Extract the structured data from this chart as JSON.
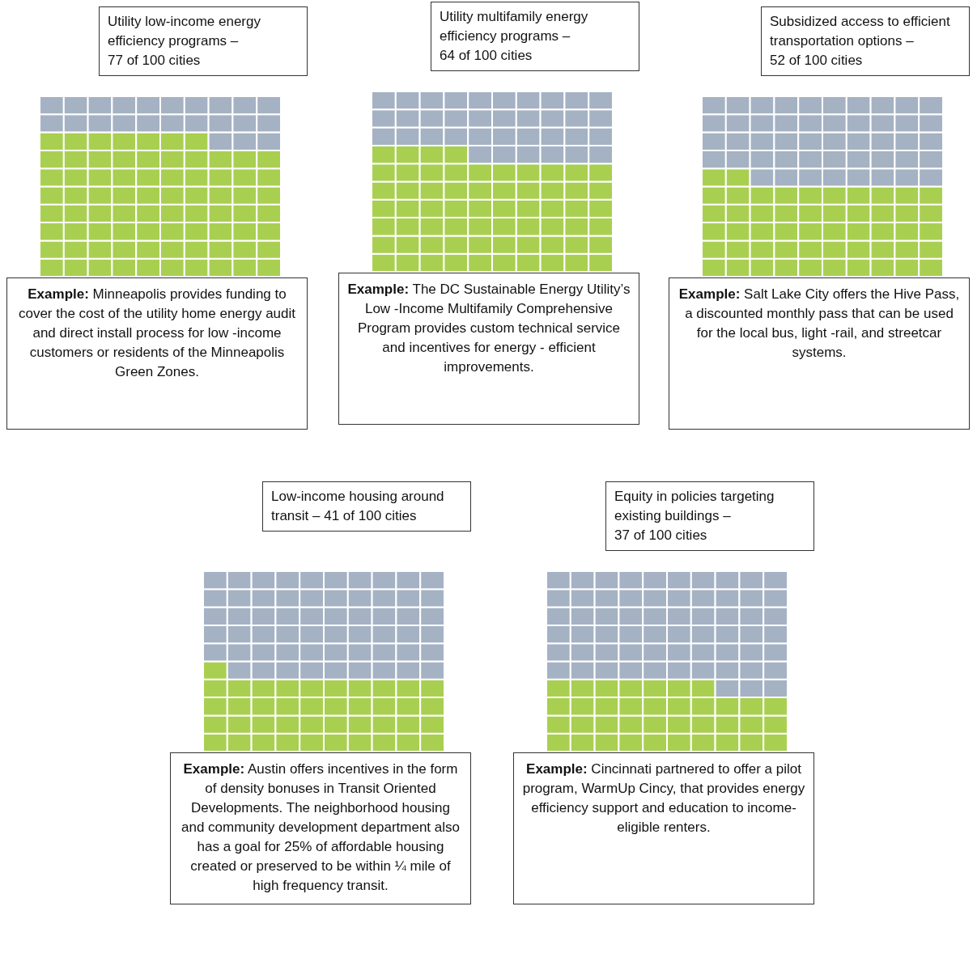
{
  "chart_data": [
    {
      "type": "other",
      "title": "Utility low-income energy efficiency programs –",
      "values": [
        77
      ],
      "value_labels": [
        "77 of 100 cities"
      ],
      "colors": [
        "#a9cf51"
      ],
      "annotations": [
        "Example: Minneapolis provides funding to cover the cost of the utility home energy audit and direct install process for low -income customers or residents of the Minneapolis Green Zones."
      ]
    },
    {
      "type": "other",
      "title": "Utility multifamily energy efficiency programs –",
      "values": [
        64
      ],
      "value_labels": [
        "64 of 100 cities"
      ],
      "colors": [
        "#a9cf51"
      ],
      "annotations": [
        "Example: The DC Sustainable Energy Utility’s Low  -Income Multifamily Comprehensive Program provides custom technical service and incentives for energy - efficient improvements."
      ]
    },
    {
      "type": "other",
      "title": "Subsidized access to efficient transportation options –",
      "values": [
        52
      ],
      "value_labels": [
        "52 of 100 cities"
      ],
      "colors": [
        "#a9cf51"
      ],
      "annotations": [
        "Example: Salt Lake City offers the Hive Pass, a discounted monthly pass that can be used for the local bus, light -rail, and streetcar systems."
      ]
    },
    {
      "type": "other",
      "title": "Low-income housing around transit –",
      "values": [
        41
      ],
      "value_labels": [
        "41 of 100 cities"
      ],
      "colors": [
        "#a9cf51"
      ],
      "annotations": [
        "Example: Austin offers incentives in the form of density bonuses in Transit Oriented Developments. The neighborhood housing and community development department also has a goal for 25% of affordable housing created or preserved to be within ¼ mile of high frequency transit."
      ]
    },
    {
      "type": "other",
      "title": "Equity in policies targeting existing buildings –",
      "values": [
        37
      ],
      "value_labels": [
        "37 of 100 cities"
      ],
      "colors": [
        "#a9cf51"
      ],
      "annotations": [
        "Example: Cincinnati partnered to offer a pilot program, WarmUp Cincy, that provides energy efficiency support and education to income-eligible renters."
      ]
    }
  ]
}
